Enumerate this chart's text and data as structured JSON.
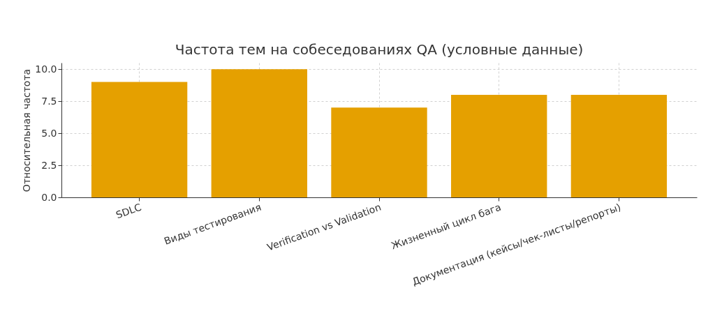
{
  "chart_data": {
    "type": "bar",
    "title": "Частота тем на собеседованиях QA (условные данные)",
    "ylabel": "Относительная частота",
    "categories": [
      "SDLC",
      "Виды тестирования",
      "Verification vs Validation",
      "Жизненный цикл бага",
      "Документация (кейсы/чек-листы/репорты)"
    ],
    "values": [
      9,
      10,
      7,
      8,
      8
    ],
    "color": "#e5a000",
    "ylim": [
      0,
      10.5
    ],
    "yticks": [
      {
        "value": 0,
        "label": "0.0"
      },
      {
        "value": 2.5,
        "label": "2.5"
      },
      {
        "value": 5,
        "label": "5.0"
      },
      {
        "value": 7.5,
        "label": "7.5"
      },
      {
        "value": 10,
        "label": "10.0"
      }
    ],
    "grid": true
  }
}
